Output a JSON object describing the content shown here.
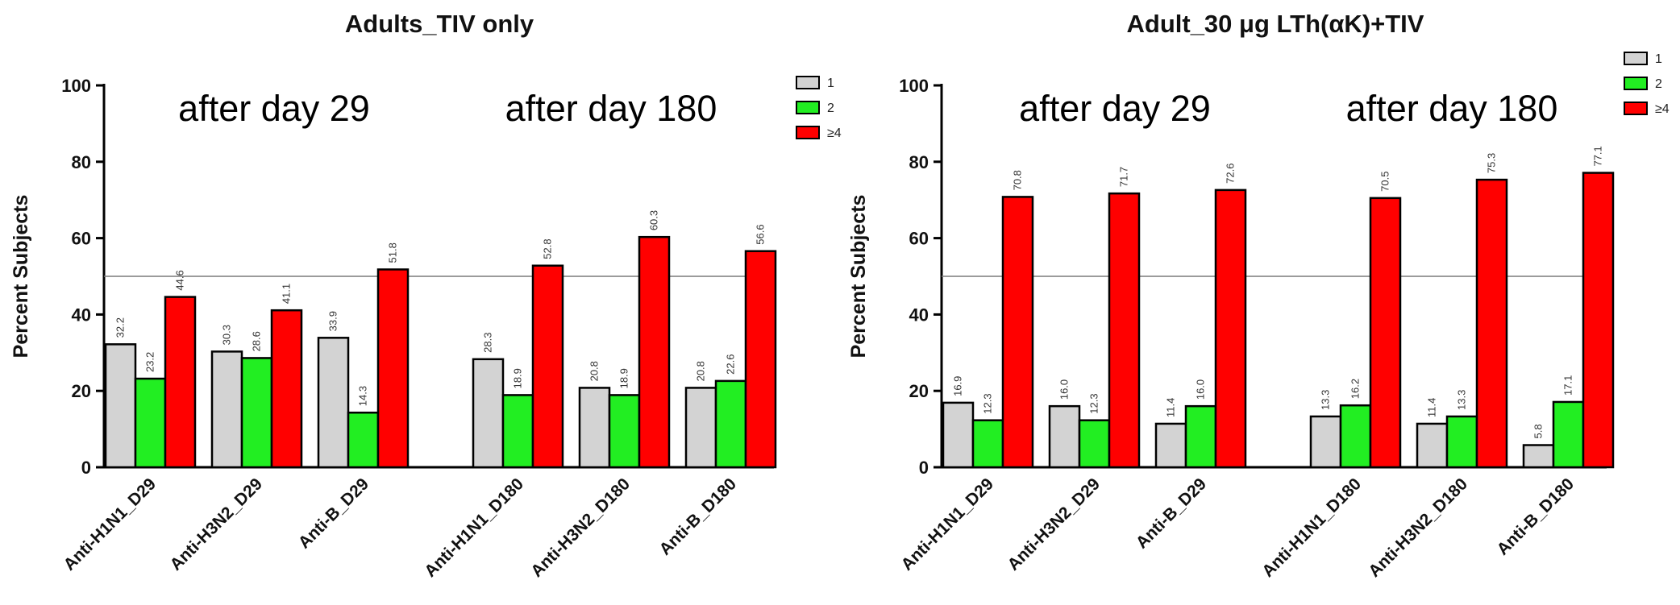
{
  "chart_data": [
    {
      "type": "bar",
      "title": "Adults_TIV only",
      "ylabel": "Percent Subjects",
      "ylim": [
        0,
        100
      ],
      "yticks": [
        0,
        20,
        40,
        60,
        80,
        100
      ],
      "reference_line": 50,
      "group_labels": [
        "after day 29",
        "after day 180"
      ],
      "categories": [
        "Anti-H1N1_D29",
        "Anti-H3N2_D29",
        "Anti-B_D29",
        "Anti-H1N1_D180",
        "Anti-H3N2_D180",
        "Anti-B_D180"
      ],
      "series": [
        {
          "name": "1",
          "color": "#d3d3d3",
          "values": [
            32.2,
            30.3,
            33.9,
            28.3,
            20.8,
            20.8
          ],
          "labels": [
            "32.2",
            "30.3",
            "33.9",
            "28.3",
            "20.8",
            "20.8"
          ]
        },
        {
          "name": "2",
          "color": "#22ee22",
          "values": [
            23.2,
            28.6,
            14.3,
            18.9,
            18.9,
            22.6
          ],
          "labels": [
            "23.2",
            "28.6",
            "14.3",
            "18.9",
            "18.9",
            "22.6"
          ]
        },
        {
          "name": "≥4",
          "color": "#ff0000",
          "values": [
            44.6,
            41.1,
            51.8,
            52.8,
            60.3,
            56.6
          ],
          "labels": [
            "44.6",
            "41.1",
            "51.8",
            "52.8",
            "60.3",
            "56.6"
          ]
        }
      ],
      "legend": "top-right",
      "grid": false
    },
    {
      "type": "bar",
      "title": "Adult_30 μg LTh(αK)+TIV",
      "ylabel": "Percent Subjects",
      "ylim": [
        0,
        100
      ],
      "yticks": [
        0,
        20,
        40,
        60,
        80,
        100
      ],
      "reference_line": 50,
      "group_labels": [
        "after day 29",
        "after day 180"
      ],
      "categories": [
        "Anti-H1N1_D29",
        "Anti-H3N2_D29",
        "Anti-B_D29",
        "Anti-H1N1_D180",
        "Anti-H3N2_D180",
        "Anti-B_D180"
      ],
      "series": [
        {
          "name": "1",
          "color": "#d3d3d3",
          "values": [
            16.9,
            16.0,
            11.4,
            13.3,
            11.4,
            5.8
          ],
          "labels": [
            "16.9",
            "16.0",
            "11.4",
            "13.3",
            "11.4",
            "5.8"
          ]
        },
        {
          "name": "2",
          "color": "#22ee22",
          "values": [
            12.3,
            12.3,
            16.0,
            16.2,
            13.3,
            17.1
          ],
          "labels": [
            "12.3",
            "12.3",
            "16.0",
            "16.2",
            "13.3",
            "17.1"
          ]
        },
        {
          "name": "≥4",
          "color": "#ff0000",
          "values": [
            70.8,
            71.7,
            72.6,
            70.5,
            75.3,
            77.1
          ],
          "labels": [
            "70.8",
            "71.7",
            "72.6",
            "70.5",
            "75.3",
            "77.1"
          ]
        }
      ],
      "legend": "top-right",
      "grid": false
    }
  ]
}
